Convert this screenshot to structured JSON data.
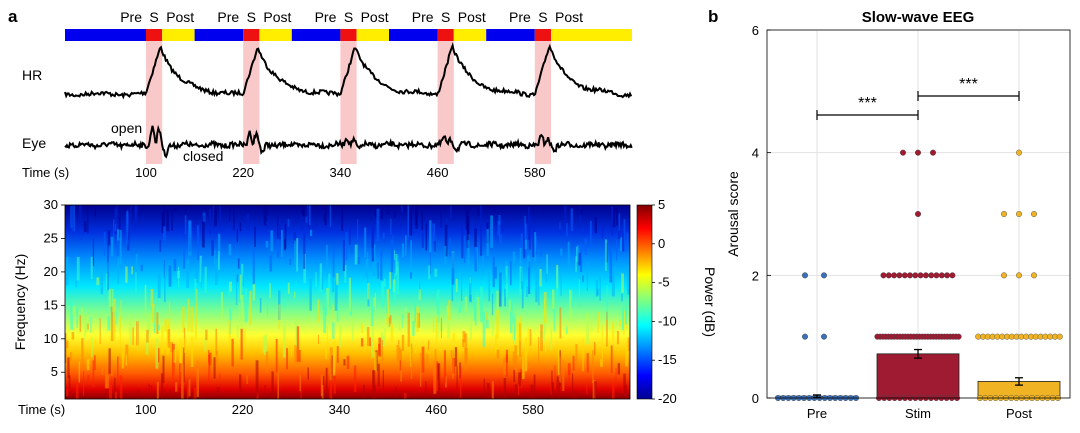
{
  "panel_a": {
    "letter": "a",
    "phase_labels": {
      "pre": "Pre",
      "stim": "S",
      "post": "Post"
    },
    "phase_colors": {
      "pre": "#0000ee",
      "stim": "#ee1111",
      "post": "#ffee00",
      "highlight": "#f9c8c8"
    },
    "stim_times": [
      100,
      220,
      340,
      460,
      580
    ],
    "time_range": [
      0,
      700
    ],
    "hr_label": "HR",
    "eye_label": "Eye",
    "eye_open_label": "open",
    "eye_closed_label": "closed",
    "time_axis_label": "Time (s)",
    "time_ticks": [
      100,
      220,
      340,
      460,
      580
    ]
  },
  "spectrogram": {
    "ylabel": "Frequency (Hz)",
    "xlabel": "Time (s)",
    "yticks": [
      5,
      10,
      15,
      20,
      25,
      30
    ],
    "ylim": [
      1,
      30
    ],
    "xticks": [
      100,
      220,
      340,
      460,
      580
    ],
    "colorbar_label": "Power (dB)",
    "colorbar_ticks": [
      5,
      0,
      -5,
      -10,
      -15,
      -20
    ],
    "clim": [
      -20,
      5
    ]
  },
  "panel_b": {
    "letter": "b",
    "chart_data": {
      "type": "bar",
      "title": "Slow-wave EEG",
      "ylabel": "Arousal score",
      "xlabel": "",
      "categories": [
        "Pre",
        "Stim",
        "Post"
      ],
      "values": [
        0.03,
        0.72,
        0.27
      ],
      "errors": [
        0.02,
        0.07,
        0.06
      ],
      "ylim": [
        0,
        6
      ],
      "yticks": [
        0,
        2,
        4,
        6
      ],
      "grid": true,
      "colors": [
        "#3b6fb6",
        "#9e1b32",
        "#f0b323"
      ],
      "points": [
        {
          "Pre_ones": 2,
          "Pre_twos": 2
        },
        {
          "Stim_fours": 3,
          "Stim_three": 1,
          "Stim_twos": 14,
          "Stim_ones": 30
        },
        {
          "Post_four": 1,
          "Post_threes": 3,
          "Post_twos": 3,
          "Post_ones": 18
        }
      ],
      "significance": [
        {
          "between": [
            "Pre",
            "Stim"
          ],
          "label": "***"
        },
        {
          "between": [
            "Stim",
            "Post"
          ],
          "label": "***"
        }
      ]
    }
  }
}
